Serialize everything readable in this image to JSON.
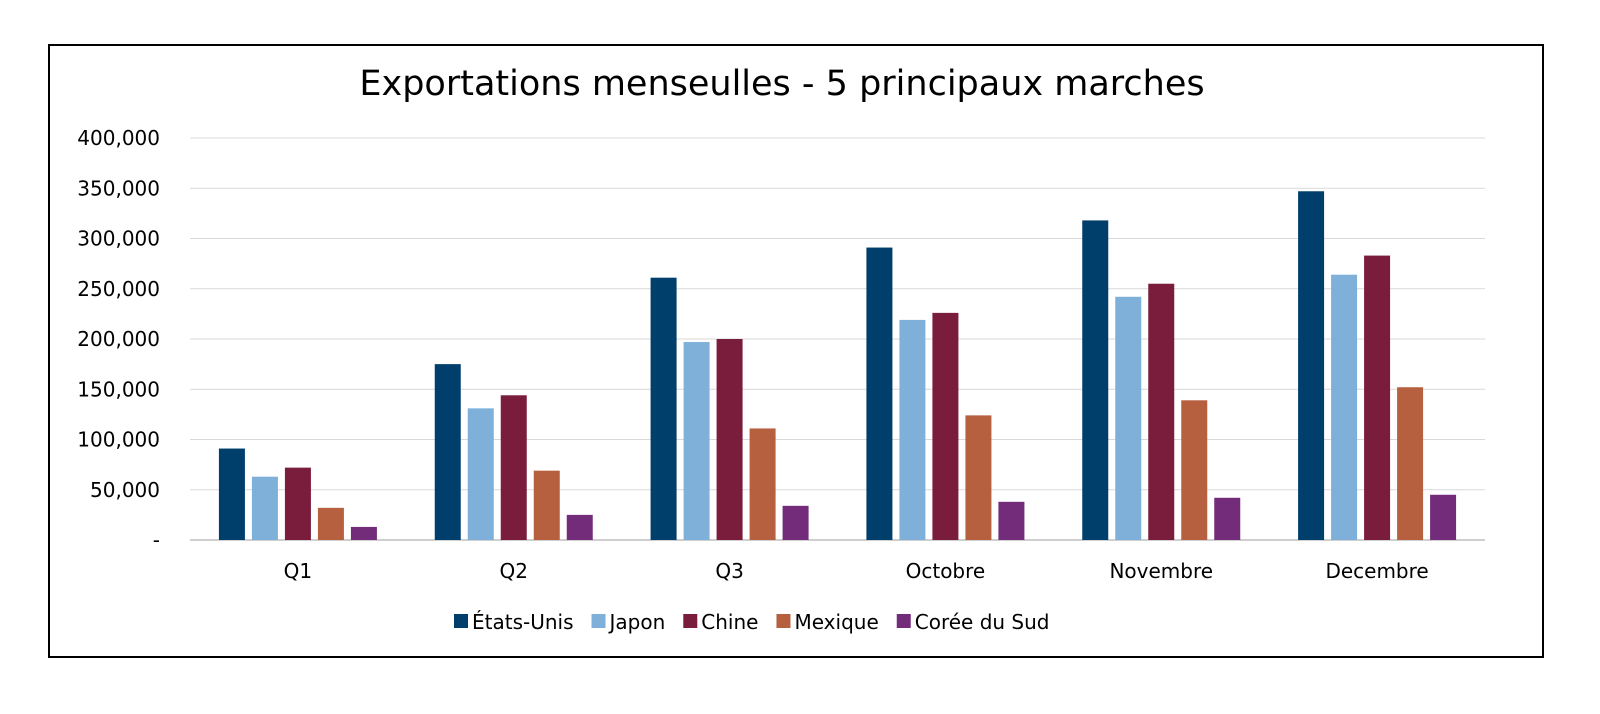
{
  "chart_data": {
    "type": "bar",
    "title": "Exportations menseulles - 5 principaux marches",
    "xlabel": "",
    "ylabel": "",
    "categories": [
      "Q1",
      "Q2",
      "Q3",
      "Octobre",
      "Novembre",
      "Decembre"
    ],
    "ylim": [
      0,
      400000
    ],
    "yticks": [
      0,
      50000,
      100000,
      150000,
      200000,
      250000,
      300000,
      350000,
      400000
    ],
    "ytick_labels": [
      "-",
      "50,000",
      "100,000",
      "150,000",
      "200,000",
      "250,000",
      "300,000",
      "350,000",
      "400,000"
    ],
    "grid": true,
    "legend_position": "bottom",
    "series": [
      {
        "name": "États-Unis",
        "color": "#003f6b",
        "values": [
          91000,
          175000,
          261000,
          291000,
          318000,
          347000
        ]
      },
      {
        "name": "Japon",
        "color": "#7eb0da",
        "values": [
          63000,
          131000,
          197000,
          219000,
          242000,
          264000
        ]
      },
      {
        "name": "Chine",
        "color": "#7a1d3c",
        "values": [
          72000,
          144000,
          200000,
          226000,
          255000,
          283000
        ]
      },
      {
        "name": "Mexique",
        "color": "#b6603f",
        "values": [
          32000,
          69000,
          111000,
          124000,
          139000,
          152000
        ]
      },
      {
        "name": "Corée du Sud",
        "color": "#722c7a",
        "values": [
          13000,
          25000,
          34000,
          38000,
          42000,
          45000
        ]
      }
    ]
  }
}
